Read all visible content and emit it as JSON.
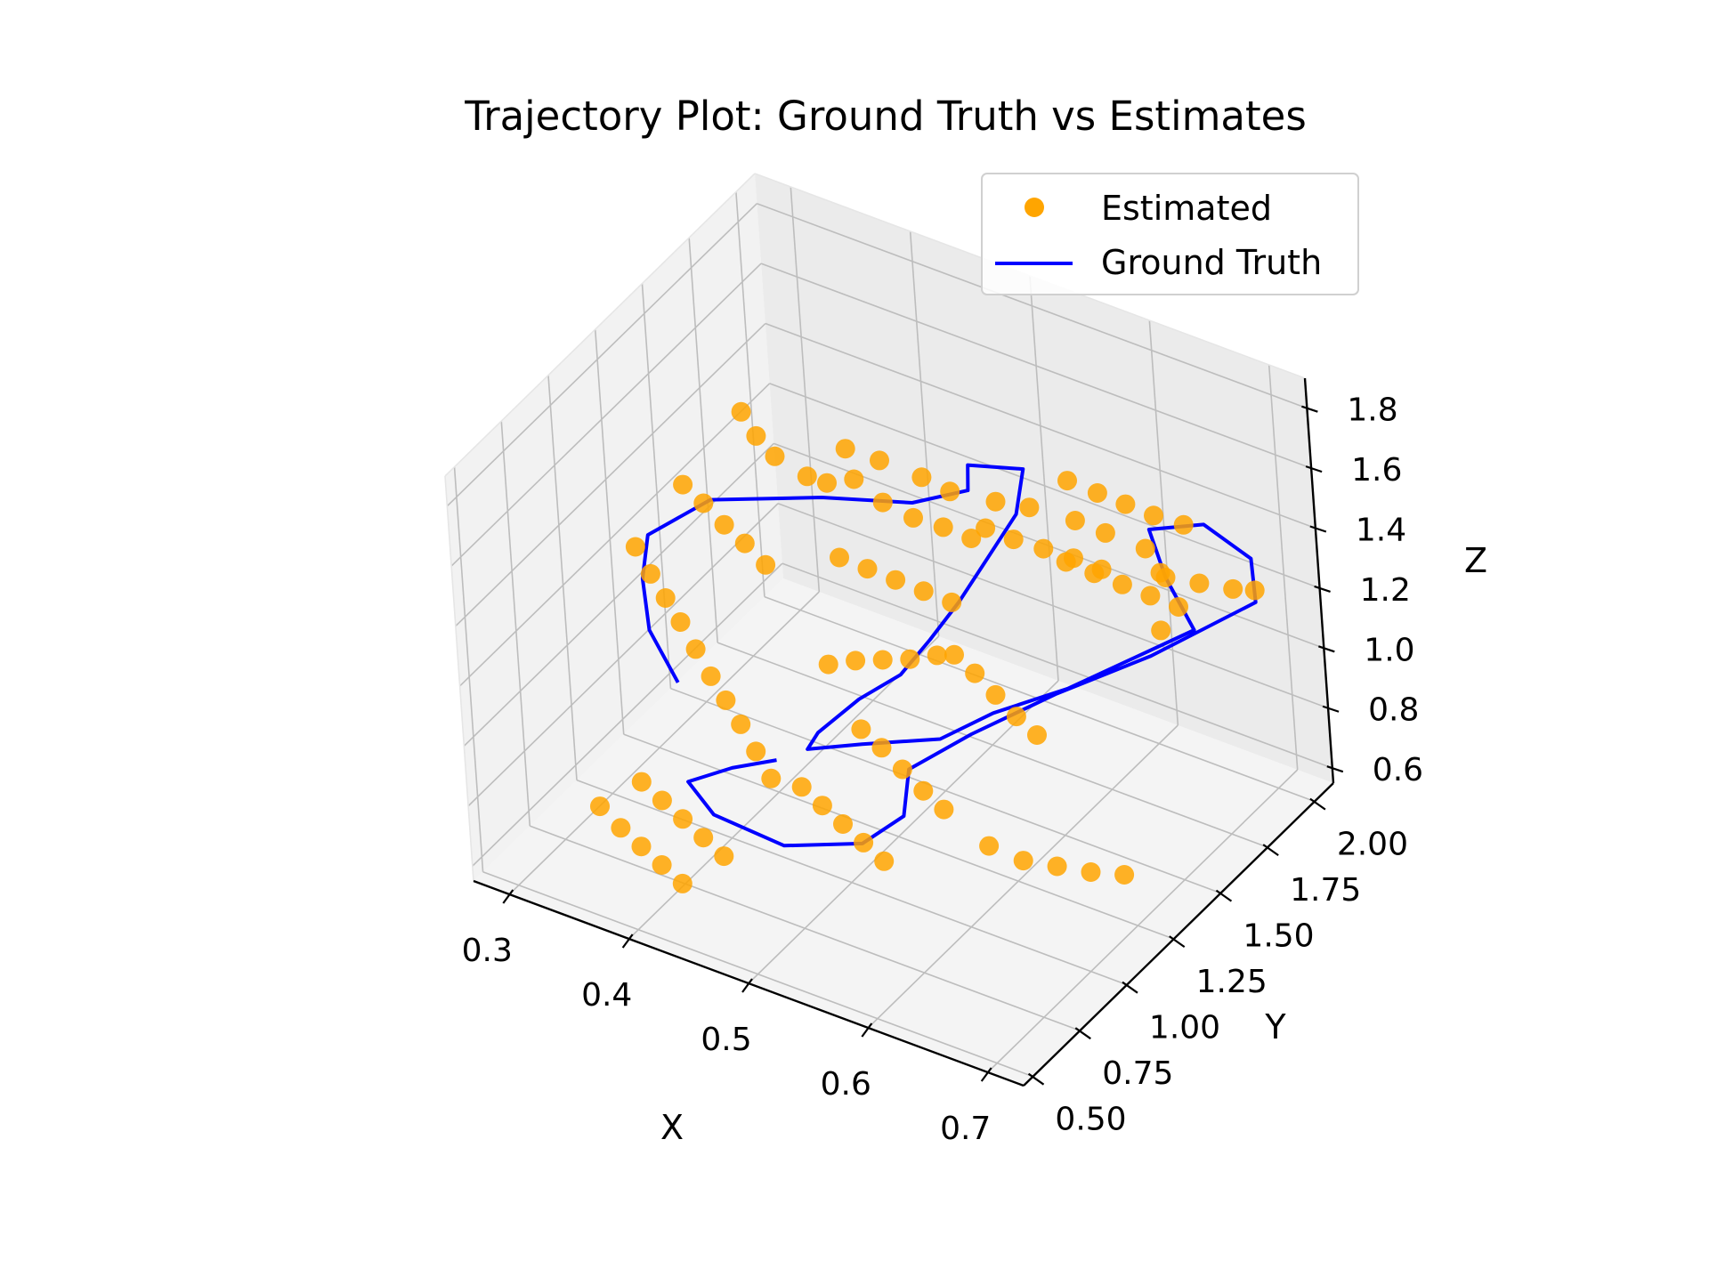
{
  "colors": {
    "estimated": "#FFA500",
    "ground_truth": "#0000FF",
    "pane_left": "#F2F2F2",
    "pane_right": "#EBEBEB",
    "pane_floor": "#F4F4F4",
    "grid": "#BDBDBD"
  },
  "chart_data": {
    "type": "scatter",
    "projection": "3d",
    "title": "Trajectory Plot: Ground Truth vs Estimates",
    "xlabel": "X",
    "ylabel": "Y",
    "zlabel": "Z",
    "xlim": [
      0.27,
      0.73
    ],
    "ylim": [
      0.45,
      2.1
    ],
    "zlim": [
      0.55,
      1.9
    ],
    "xticks": [
      "0.3",
      "0.4",
      "0.5",
      "0.6",
      "0.7"
    ],
    "yticks": [
      "0.50",
      "0.75",
      "1.00",
      "1.25",
      "1.50",
      "1.75",
      "2.00"
    ],
    "zticks": [
      "0.6",
      "0.8",
      "1.0",
      "1.2",
      "1.4",
      "1.6",
      "1.8"
    ],
    "grid": true,
    "legend_position": "top-right",
    "legend": [
      "Estimated",
      "Ground Truth"
    ],
    "series": [
      {
        "name": "Estimated",
        "kind": "scatter",
        "points": [
          [
            0.33,
            1.6,
            1.5
          ],
          [
            0.35,
            1.55,
            1.48
          ],
          [
            0.37,
            1.52,
            1.46
          ],
          [
            0.4,
            1.5,
            1.45
          ],
          [
            0.42,
            1.48,
            1.47
          ],
          [
            0.44,
            1.5,
            1.5
          ],
          [
            0.46,
            1.52,
            1.44
          ],
          [
            0.48,
            1.55,
            1.4
          ],
          [
            0.5,
            1.58,
            1.38
          ],
          [
            0.52,
            1.6,
            1.36
          ],
          [
            0.4,
            1.7,
            1.42
          ],
          [
            0.42,
            1.75,
            1.38
          ],
          [
            0.45,
            1.78,
            1.35
          ],
          [
            0.47,
            1.8,
            1.32
          ],
          [
            0.5,
            1.85,
            1.3
          ],
          [
            0.52,
            1.9,
            1.28
          ],
          [
            0.55,
            1.95,
            1.25
          ],
          [
            0.57,
            1.98,
            1.22
          ],
          [
            0.6,
            2.0,
            1.2
          ],
          [
            0.62,
            1.95,
            1.18
          ],
          [
            0.3,
            1.2,
            1.25
          ],
          [
            0.32,
            1.15,
            1.22
          ],
          [
            0.34,
            1.1,
            1.2
          ],
          [
            0.36,
            1.05,
            1.18
          ],
          [
            0.38,
            1.0,
            1.15
          ],
          [
            0.4,
            0.95,
            1.12
          ],
          [
            0.42,
            0.9,
            1.1
          ],
          [
            0.44,
            0.85,
            1.08
          ],
          [
            0.46,
            0.8,
            1.05
          ],
          [
            0.48,
            0.75,
            1.02
          ],
          [
            0.31,
            1.4,
            1.35
          ],
          [
            0.33,
            1.38,
            1.33
          ],
          [
            0.35,
            1.36,
            1.3
          ],
          [
            0.37,
            1.34,
            1.28
          ],
          [
            0.39,
            1.32,
            1.25
          ],
          [
            0.55,
            1.3,
            1.2
          ],
          [
            0.57,
            1.28,
            1.18
          ],
          [
            0.59,
            1.26,
            1.15
          ],
          [
            0.61,
            1.24,
            1.12
          ],
          [
            0.63,
            1.22,
            1.1
          ],
          [
            0.5,
            1.1,
            1.0
          ],
          [
            0.52,
            1.08,
            0.98
          ],
          [
            0.54,
            1.06,
            0.95
          ],
          [
            0.56,
            1.04,
            0.92
          ],
          [
            0.58,
            1.02,
            0.9
          ],
          [
            0.45,
            1.25,
            1.05
          ],
          [
            0.47,
            1.27,
            1.08
          ],
          [
            0.49,
            1.29,
            1.1
          ],
          [
            0.51,
            1.31,
            1.12
          ],
          [
            0.53,
            1.33,
            1.15
          ],
          [
            0.36,
            0.8,
            0.8
          ],
          [
            0.38,
            0.78,
            0.78
          ],
          [
            0.4,
            0.76,
            0.76
          ],
          [
            0.42,
            0.74,
            0.74
          ],
          [
            0.44,
            0.72,
            0.72
          ],
          [
            0.34,
            0.7,
            0.75
          ],
          [
            0.36,
            0.68,
            0.72
          ],
          [
            0.38,
            0.66,
            0.7
          ],
          [
            0.4,
            0.64,
            0.68
          ],
          [
            0.42,
            0.62,
            0.66
          ],
          [
            0.6,
            1.6,
            1.4
          ],
          [
            0.62,
            1.62,
            1.38
          ],
          [
            0.64,
            1.64,
            1.36
          ],
          [
            0.66,
            1.66,
            1.34
          ],
          [
            0.68,
            1.68,
            1.32
          ],
          [
            0.65,
            1.8,
            1.3
          ],
          [
            0.67,
            1.85,
            1.28
          ],
          [
            0.69,
            1.9,
            1.26
          ],
          [
            0.7,
            1.95,
            1.24
          ],
          [
            0.66,
            1.7,
            1.2
          ],
          [
            0.55,
            1.5,
            1.5
          ],
          [
            0.57,
            1.52,
            1.48
          ],
          [
            0.59,
            1.55,
            1.46
          ],
          [
            0.61,
            1.58,
            1.44
          ],
          [
            0.63,
            1.6,
            1.42
          ],
          [
            0.48,
            0.9,
            0.9
          ],
          [
            0.5,
            0.88,
            0.88
          ],
          [
            0.52,
            0.86,
            0.86
          ],
          [
            0.54,
            0.84,
            0.84
          ],
          [
            0.56,
            0.82,
            0.82
          ],
          [
            0.62,
            1.0,
            0.85
          ],
          [
            0.64,
            1.05,
            0.8
          ],
          [
            0.66,
            1.1,
            0.78
          ],
          [
            0.68,
            1.15,
            0.76
          ],
          [
            0.7,
            1.2,
            0.75
          ],
          [
            0.44,
            1.4,
            1.3
          ],
          [
            0.46,
            1.42,
            1.28
          ],
          [
            0.48,
            1.44,
            1.26
          ],
          [
            0.5,
            1.46,
            1.24
          ],
          [
            0.52,
            1.48,
            1.22
          ],
          [
            0.58,
            1.75,
            1.55
          ],
          [
            0.6,
            1.78,
            1.52
          ],
          [
            0.62,
            1.8,
            1.5
          ],
          [
            0.64,
            1.82,
            1.48
          ],
          [
            0.66,
            1.85,
            1.46
          ]
        ]
      },
      {
        "name": "Ground Truth",
        "kind": "line",
        "points": [
          [
            0.38,
            0.9,
            1.1
          ],
          [
            0.35,
            0.95,
            1.2
          ],
          [
            0.33,
            1.05,
            1.28
          ],
          [
            0.32,
            1.15,
            1.35
          ],
          [
            0.35,
            1.3,
            1.42
          ],
          [
            0.42,
            1.45,
            1.44
          ],
          [
            0.48,
            1.55,
            1.45
          ],
          [
            0.52,
            1.6,
            1.52
          ],
          [
            0.53,
            1.55,
            1.65
          ],
          [
            0.56,
            1.65,
            1.62
          ],
          [
            0.56,
            1.6,
            1.5
          ],
          [
            0.55,
            1.5,
            1.4
          ],
          [
            0.54,
            1.4,
            1.3
          ],
          [
            0.53,
            1.3,
            1.22
          ],
          [
            0.52,
            1.2,
            1.15
          ],
          [
            0.5,
            1.1,
            1.1
          ],
          [
            0.48,
            1.0,
            1.02
          ],
          [
            0.47,
            1.0,
            0.95
          ],
          [
            0.5,
            1.1,
            0.95
          ],
          [
            0.55,
            1.2,
            0.98
          ],
          [
            0.58,
            1.3,
            1.05
          ],
          [
            0.62,
            1.45,
            1.1
          ],
          [
            0.65,
            1.6,
            1.15
          ],
          [
            0.68,
            1.75,
            1.2
          ],
          [
            0.65,
            1.8,
            1.3
          ],
          [
            0.63,
            1.85,
            1.4
          ],
          [
            0.66,
            1.95,
            1.4
          ],
          [
            0.69,
            2.0,
            1.3
          ],
          [
            0.7,
            1.95,
            1.2
          ],
          [
            0.65,
            1.7,
            1.1
          ],
          [
            0.6,
            1.5,
            1.02
          ],
          [
            0.56,
            1.3,
            0.95
          ],
          [
            0.53,
            1.15,
            0.88
          ],
          [
            0.54,
            1.05,
            0.8
          ],
          [
            0.52,
            0.95,
            0.74
          ],
          [
            0.47,
            0.85,
            0.72
          ],
          [
            0.42,
            0.8,
            0.78
          ],
          [
            0.4,
            0.8,
            0.86
          ],
          [
            0.43,
            0.85,
            0.92
          ],
          [
            0.46,
            0.9,
            0.96
          ]
        ]
      }
    ]
  }
}
